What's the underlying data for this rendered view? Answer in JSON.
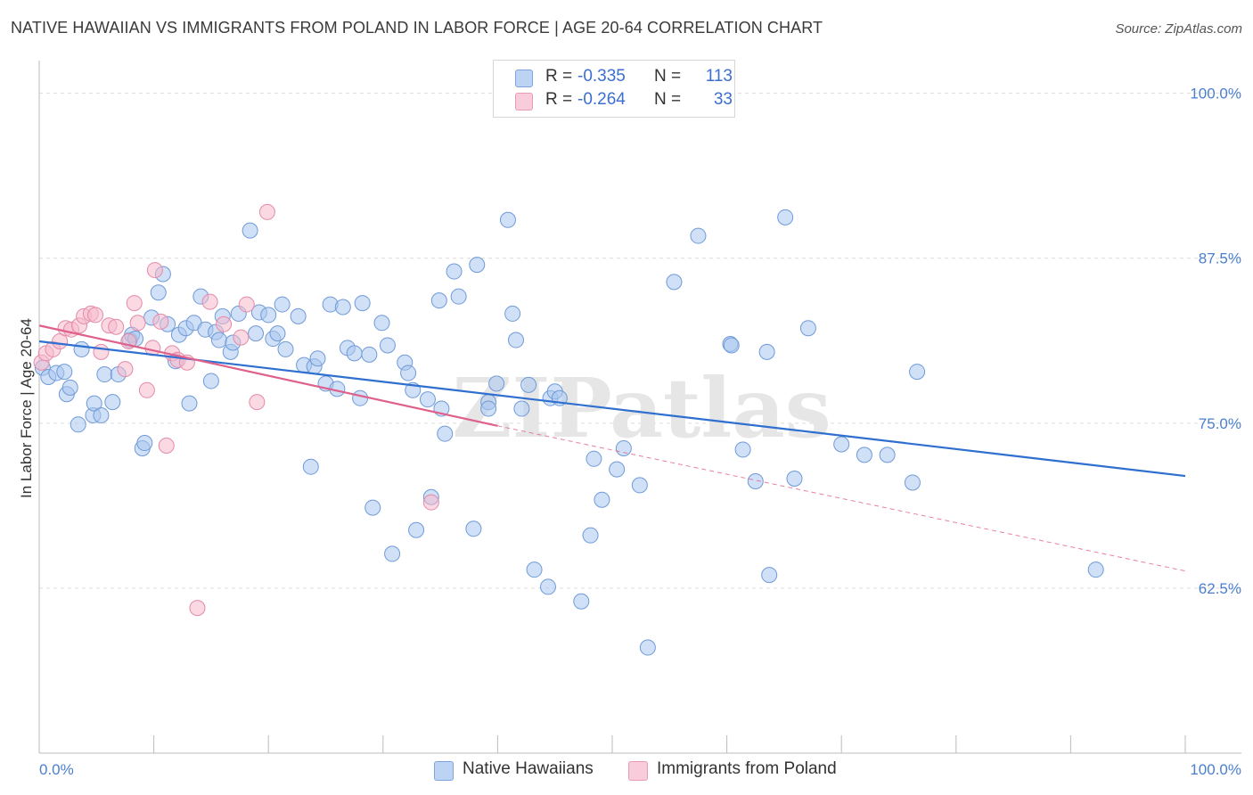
{
  "header": {
    "title": "NATIVE HAWAIIAN VS IMMIGRANTS FROM POLAND IN LABOR FORCE | AGE 20-64 CORRELATION CHART",
    "source": "Source: ZipAtlas.com"
  },
  "watermark": "ZIPatlas",
  "legend_top": [
    {
      "r_label": "R =",
      "r_value": "-0.335",
      "n_label": "N =",
      "n_value": "113"
    },
    {
      "r_label": "R =",
      "r_value": "-0.264",
      "n_label": "N =",
      "n_value": "33"
    }
  ],
  "legend_bottom": [
    "Native Hawaiians",
    "Immigrants from Poland"
  ],
  "colors": {
    "blue_fill": "#a9c6ef",
    "blue_stroke": "#6f9ad8",
    "blue_line": "#2f6fd0",
    "pink_fill": "#f5b9cc",
    "pink_stroke": "#e58aa8",
    "pink_line": "#e0608c",
    "tick_text": "#4a7fcf"
  },
  "chart_data": {
    "type": "scatter",
    "title": "NATIVE HAWAIIAN VS IMMIGRANTS FROM POLAND IN LABOR FORCE | AGE 20-64 CORRELATION CHART",
    "xlabel": "",
    "ylabel": "In Labor Force | Age 20-64",
    "xlim": [
      0,
      100
    ],
    "ylim": [
      50,
      100
    ],
    "x_tick_labels": [
      "0.0%",
      "100.0%"
    ],
    "y_ticks": [
      62.5,
      75.0,
      87.5,
      100.0
    ],
    "y_tick_labels": [
      "62.5%",
      "75.0%",
      "87.5%",
      "100.0%"
    ],
    "grid": true,
    "legend_position": "top-center",
    "series": [
      {
        "name": "Native Hawaiians",
        "r": -0.335,
        "n": 113,
        "trend": {
          "x0": 0,
          "y0": 81.2,
          "x1": 100,
          "y1": 71.0
        },
        "points": [
          [
            0.3,
            79.2
          ],
          [
            0.8,
            78.5
          ],
          [
            1.5,
            78.8
          ],
          [
            2.2,
            78.9
          ],
          [
            2.4,
            77.2
          ],
          [
            2.7,
            77.7
          ],
          [
            3.4,
            74.9
          ],
          [
            3.7,
            80.6
          ],
          [
            4.7,
            75.6
          ],
          [
            4.8,
            76.5
          ],
          [
            5.4,
            75.6
          ],
          [
            5.7,
            78.7
          ],
          [
            6.4,
            76.6
          ],
          [
            6.9,
            78.7
          ],
          [
            7.9,
            81.3
          ],
          [
            8.1,
            81.7
          ],
          [
            8.4,
            81.4
          ],
          [
            9.0,
            73.1
          ],
          [
            9.2,
            73.5
          ],
          [
            9.8,
            83.0
          ],
          [
            10.4,
            84.9
          ],
          [
            10.8,
            86.3
          ],
          [
            11.2,
            82.5
          ],
          [
            11.9,
            79.7
          ],
          [
            12.2,
            81.7
          ],
          [
            12.8,
            82.2
          ],
          [
            13.1,
            76.5
          ],
          [
            13.5,
            82.6
          ],
          [
            14.1,
            84.6
          ],
          [
            14.5,
            82.1
          ],
          [
            15.0,
            78.2
          ],
          [
            15.4,
            81.9
          ],
          [
            15.7,
            81.3
          ],
          [
            16.0,
            83.1
          ],
          [
            16.7,
            80.4
          ],
          [
            16.9,
            81.1
          ],
          [
            17.4,
            83.3
          ],
          [
            18.4,
            89.6
          ],
          [
            18.9,
            81.8
          ],
          [
            19.2,
            83.4
          ],
          [
            20.0,
            83.2
          ],
          [
            20.4,
            81.4
          ],
          [
            20.8,
            81.8
          ],
          [
            21.2,
            84.0
          ],
          [
            21.5,
            80.6
          ],
          [
            22.6,
            83.1
          ],
          [
            23.1,
            79.4
          ],
          [
            23.7,
            71.7
          ],
          [
            24.0,
            79.3
          ],
          [
            24.3,
            79.9
          ],
          [
            25.0,
            78.0
          ],
          [
            25.4,
            84.0
          ],
          [
            26.0,
            77.6
          ],
          [
            26.5,
            83.8
          ],
          [
            26.9,
            80.7
          ],
          [
            27.5,
            80.3
          ],
          [
            28.2,
            84.1
          ],
          [
            28.0,
            76.9
          ],
          [
            28.8,
            80.2
          ],
          [
            29.1,
            68.6
          ],
          [
            29.9,
            82.6
          ],
          [
            30.4,
            80.9
          ],
          [
            30.8,
            65.1
          ],
          [
            31.9,
            79.6
          ],
          [
            32.2,
            78.8
          ],
          [
            32.6,
            77.5
          ],
          [
            32.9,
            66.9
          ],
          [
            33.9,
            76.8
          ],
          [
            34.2,
            69.4
          ],
          [
            34.9,
            84.3
          ],
          [
            35.1,
            76.1
          ],
          [
            35.4,
            74.2
          ],
          [
            36.2,
            86.5
          ],
          [
            36.6,
            84.6
          ],
          [
            37.9,
            67.0
          ],
          [
            38.2,
            87.0
          ],
          [
            39.2,
            76.6
          ],
          [
            39.2,
            76.1
          ],
          [
            39.9,
            78.0
          ],
          [
            40.9,
            90.4
          ],
          [
            41.3,
            83.3
          ],
          [
            41.6,
            81.3
          ],
          [
            42.1,
            76.1
          ],
          [
            42.7,
            77.9
          ],
          [
            43.2,
            63.9
          ],
          [
            44.4,
            62.6
          ],
          [
            44.6,
            76.9
          ],
          [
            45.0,
            77.4
          ],
          [
            45.4,
            76.9
          ],
          [
            47.3,
            61.5
          ],
          [
            48.1,
            66.5
          ],
          [
            48.4,
            72.3
          ],
          [
            49.1,
            69.2
          ],
          [
            50.4,
            71.5
          ],
          [
            51.0,
            73.1
          ],
          [
            52.4,
            70.3
          ],
          [
            53.1,
            58.0
          ],
          [
            55.4,
            85.7
          ],
          [
            57.5,
            89.2
          ],
          [
            60.3,
            81.0
          ],
          [
            60.4,
            80.9
          ],
          [
            61.4,
            73.0
          ],
          [
            62.5,
            70.6
          ],
          [
            63.7,
            63.5
          ],
          [
            63.5,
            80.4
          ],
          [
            65.1,
            90.6
          ],
          [
            65.9,
            70.8
          ],
          [
            67.1,
            82.2
          ],
          [
            70.0,
            73.4
          ],
          [
            72.0,
            72.6
          ],
          [
            74.0,
            72.6
          ],
          [
            76.2,
            70.5
          ],
          [
            76.6,
            78.9
          ],
          [
            92.2,
            63.9
          ]
        ]
      },
      {
        "name": "Immigrants from Poland",
        "r": -0.264,
        "n": 33,
        "trend": {
          "x0": 0,
          "y0": 82.4,
          "x1": 40,
          "y1": 74.8,
          "dashed_to_x": 100,
          "dashed_to_y": 63.8
        },
        "points": [
          [
            0.2,
            79.6
          ],
          [
            0.6,
            80.3
          ],
          [
            1.2,
            80.6
          ],
          [
            1.8,
            81.2
          ],
          [
            2.3,
            82.2
          ],
          [
            2.8,
            82.1
          ],
          [
            3.5,
            82.4
          ],
          [
            3.9,
            83.1
          ],
          [
            4.5,
            83.3
          ],
          [
            4.9,
            83.2
          ],
          [
            5.4,
            80.4
          ],
          [
            6.1,
            82.4
          ],
          [
            6.7,
            82.3
          ],
          [
            7.5,
            79.1
          ],
          [
            7.8,
            81.2
          ],
          [
            8.3,
            84.1
          ],
          [
            8.6,
            82.6
          ],
          [
            9.4,
            77.5
          ],
          [
            9.9,
            80.7
          ],
          [
            10.1,
            86.6
          ],
          [
            10.6,
            82.7
          ],
          [
            11.1,
            73.3
          ],
          [
            11.6,
            80.3
          ],
          [
            12.1,
            79.8
          ],
          [
            12.9,
            79.6
          ],
          [
            13.8,
            61.0
          ],
          [
            14.9,
            84.2
          ],
          [
            16.1,
            82.5
          ],
          [
            17.6,
            81.5
          ],
          [
            18.1,
            84.0
          ],
          [
            19.0,
            76.6
          ],
          [
            19.9,
            91.0
          ],
          [
            34.2,
            69.0
          ]
        ]
      }
    ]
  }
}
